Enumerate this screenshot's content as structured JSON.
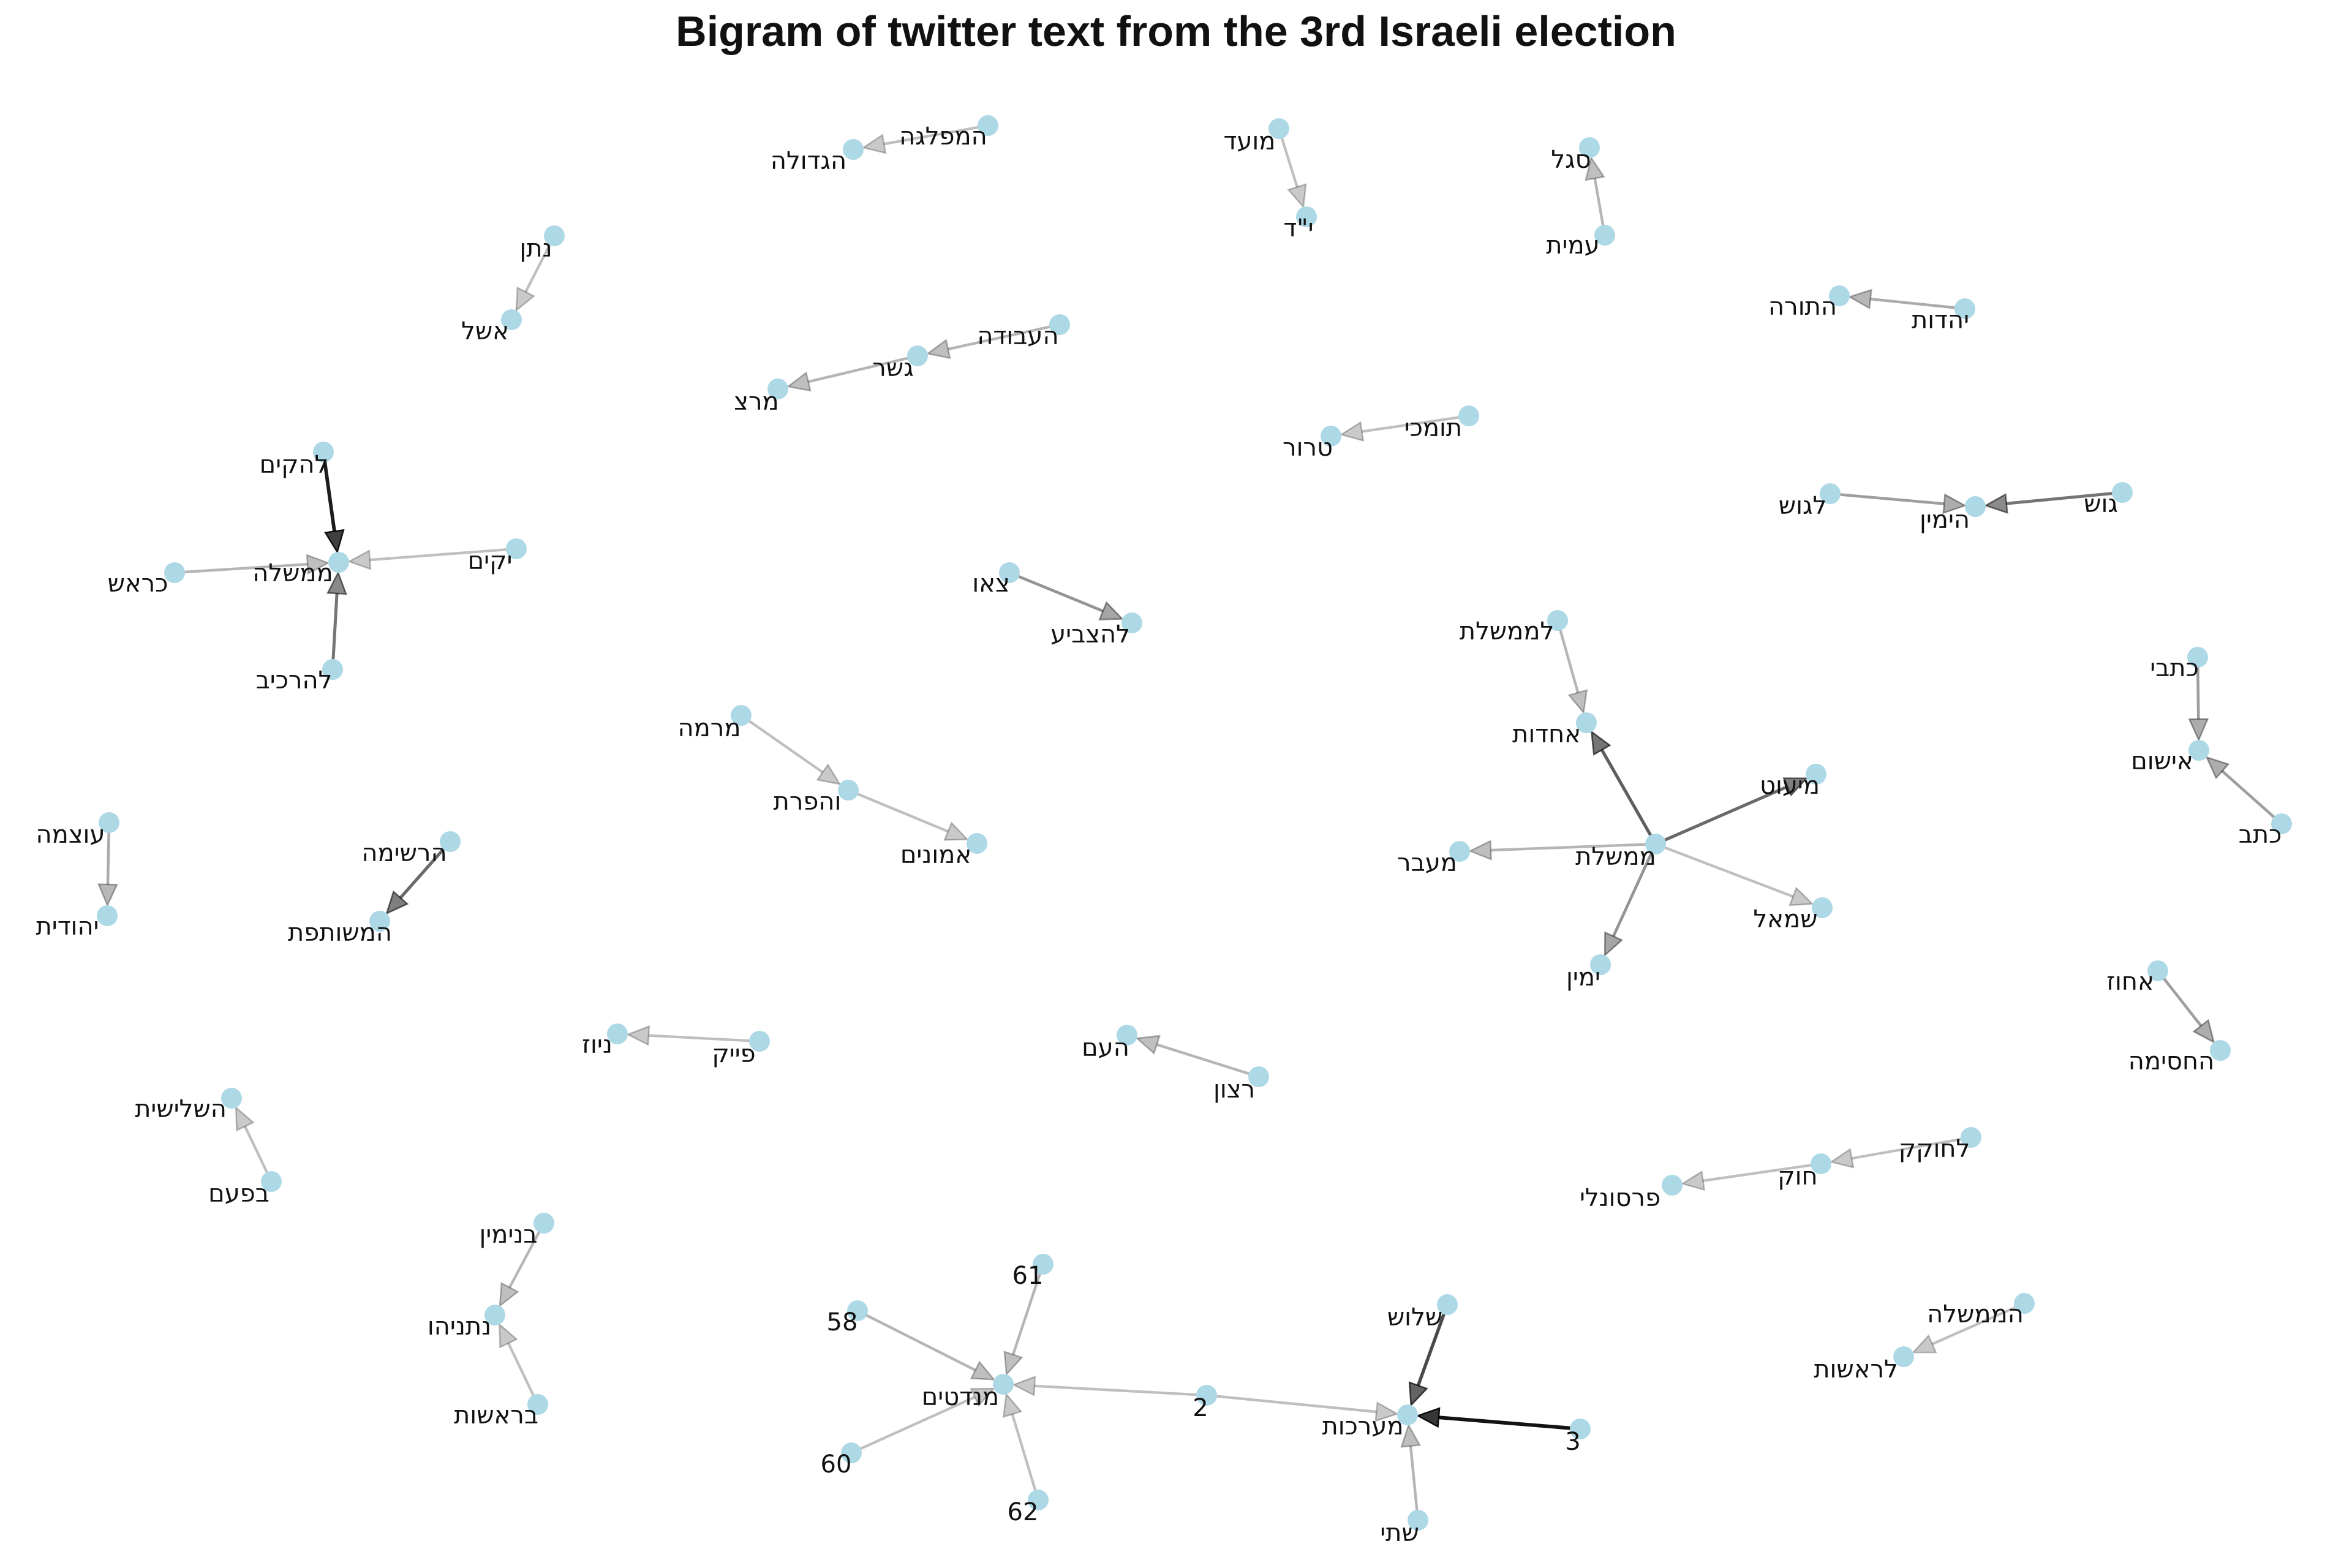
{
  "title": "Bigram of twitter text from the 3rd Israeli election",
  "colors": {
    "node": "#ADD8E6",
    "edge": "#000000",
    "text": "#111111"
  },
  "nodes": [
    {
      "id": "mifleget",
      "label": "המפלגה"
    },
    {
      "id": "gdola",
      "label": "הגדולה"
    },
    {
      "id": "moed",
      "label": "מועד"
    },
    {
      "id": "yud",
      "label": "י\"ד"
    },
    {
      "id": "segal",
      "label": "סגל"
    },
    {
      "id": "amit",
      "label": "עמית"
    },
    {
      "id": "natan",
      "label": "נתן"
    },
    {
      "id": "eshel",
      "label": "אשל"
    },
    {
      "id": "yahadut",
      "label": "יהדות"
    },
    {
      "id": "torah",
      "label": "התורה"
    },
    {
      "id": "avoda",
      "label": "העבודה"
    },
    {
      "id": "gesher",
      "label": "גשר"
    },
    {
      "id": "meretz",
      "label": "מרצ"
    },
    {
      "id": "tomchei",
      "label": "תומכי"
    },
    {
      "id": "teror",
      "label": "טרור"
    },
    {
      "id": "lagush",
      "label": "לגוש"
    },
    {
      "id": "gush",
      "label": "גוש"
    },
    {
      "id": "yamin_h",
      "label": "הימין"
    },
    {
      "id": "lehakim",
      "label": "להקים"
    },
    {
      "id": "yakim",
      "label": "יקים"
    },
    {
      "id": "memshala",
      "label": "ממשלה"
    },
    {
      "id": "kerosh",
      "label": "כראש"
    },
    {
      "id": "leharkiv",
      "label": "להרכיב"
    },
    {
      "id": "tzeu",
      "label": "צאו"
    },
    {
      "id": "lehatzbia",
      "label": "להצביע"
    },
    {
      "id": "lememshelet",
      "label": "לממשלת"
    },
    {
      "id": "achdut",
      "label": "אחדות"
    },
    {
      "id": "miut",
      "label": "מיעוט"
    },
    {
      "id": "maavar",
      "label": "מעבר"
    },
    {
      "id": "memshelet",
      "label": "ממשלת"
    },
    {
      "id": "smol",
      "label": "שמאל"
    },
    {
      "id": "yamin",
      "label": "ימין"
    },
    {
      "id": "ktavi",
      "label": "כתבי"
    },
    {
      "id": "ishum",
      "label": "אישום"
    },
    {
      "id": "ktav",
      "label": "כתב"
    },
    {
      "id": "mirma",
      "label": "מרמה"
    },
    {
      "id": "vehafarat",
      "label": "והפרת"
    },
    {
      "id": "emunim",
      "label": "אמונים"
    },
    {
      "id": "otzma",
      "label": "עוצמה"
    },
    {
      "id": "yehudit",
      "label": "יהודית"
    },
    {
      "id": "reshima",
      "label": "הרשימה"
    },
    {
      "id": "meshutefet",
      "label": "המשותפת"
    },
    {
      "id": "fake",
      "label": "פייק"
    },
    {
      "id": "news",
      "label": "ניוז"
    },
    {
      "id": "ratzon",
      "label": "רצון"
    },
    {
      "id": "haam",
      "label": "העם"
    },
    {
      "id": "achuz",
      "label": "אחוז"
    },
    {
      "id": "hachsima",
      "label": "החסימה"
    },
    {
      "id": "shlishit",
      "label": "השלישית"
    },
    {
      "id": "bapaam",
      "label": "בפעם"
    },
    {
      "id": "lachokek",
      "label": "לחוקק"
    },
    {
      "id": "chok",
      "label": "חוק"
    },
    {
      "id": "personali",
      "label": "פרסונלי"
    },
    {
      "id": "binyamin",
      "label": "בנימין"
    },
    {
      "id": "netanyahu",
      "label": "נתניהו"
    },
    {
      "id": "berashut",
      "label": "בראשות"
    },
    {
      "id": "n61",
      "label": "61"
    },
    {
      "id": "n58",
      "label": "58"
    },
    {
      "id": "mandatim",
      "label": "מנדטים"
    },
    {
      "id": "n60",
      "label": "60"
    },
    {
      "id": "n62",
      "label": "62"
    },
    {
      "id": "n2",
      "label": "2"
    },
    {
      "id": "shalosh",
      "label": "שלוש"
    },
    {
      "id": "maarachot",
      "label": "מערכות"
    },
    {
      "id": "n3",
      "label": "3"
    },
    {
      "id": "shtei",
      "label": "שתי"
    },
    {
      "id": "hamemshala",
      "label": "הממשלה"
    },
    {
      "id": "lerashut",
      "label": "לראשות"
    }
  ],
  "edges": [
    {
      "from": "mifleget",
      "to": "gdola",
      "weight": 0.15
    },
    {
      "from": "moed",
      "to": "yud",
      "weight": 0.15
    },
    {
      "from": "amit",
      "to": "segal",
      "weight": 0.2
    },
    {
      "from": "natan",
      "to": "eshel",
      "weight": 0.15
    },
    {
      "from": "yahadut",
      "to": "torah",
      "weight": 0.25
    },
    {
      "from": "avoda",
      "to": "gesher",
      "weight": 0.2
    },
    {
      "from": "gesher",
      "to": "meretz",
      "weight": 0.2
    },
    {
      "from": "tomchei",
      "to": "teror",
      "weight": 0.15
    },
    {
      "from": "lagush",
      "to": "yamin_h",
      "weight": 0.3
    },
    {
      "from": "gush",
      "to": "yamin_h",
      "weight": 0.5
    },
    {
      "from": "lehakim",
      "to": "memshala",
      "weight": 0.9
    },
    {
      "from": "yakim",
      "to": "memshala",
      "weight": 0.15
    },
    {
      "from": "kerosh",
      "to": "memshala",
      "weight": 0.2
    },
    {
      "from": "leharkiv",
      "to": "memshala",
      "weight": 0.5
    },
    {
      "from": "tzeu",
      "to": "lehatzbia",
      "weight": 0.35
    },
    {
      "from": "lememshelet",
      "to": "achdut",
      "weight": 0.2
    },
    {
      "from": "memshelet",
      "to": "achdut",
      "weight": 0.6
    },
    {
      "from": "memshelet",
      "to": "miut",
      "weight": 0.55
    },
    {
      "from": "memshelet",
      "to": "maavar",
      "weight": 0.2
    },
    {
      "from": "memshelet",
      "to": "smol",
      "weight": 0.15
    },
    {
      "from": "memshelet",
      "to": "yamin",
      "weight": 0.35
    },
    {
      "from": "ktavi",
      "to": "ishum",
      "weight": 0.3
    },
    {
      "from": "ktav",
      "to": "ishum",
      "weight": 0.3
    },
    {
      "from": "mirma",
      "to": "vehafarat",
      "weight": 0.15
    },
    {
      "from": "vehafarat",
      "to": "emunim",
      "weight": 0.15
    },
    {
      "from": "otzma",
      "to": "yehudit",
      "weight": 0.25
    },
    {
      "from": "reshima",
      "to": "meshutefet",
      "weight": 0.55
    },
    {
      "from": "fake",
      "to": "news",
      "weight": 0.15
    },
    {
      "from": "ratzon",
      "to": "haam",
      "weight": 0.2
    },
    {
      "from": "achuz",
      "to": "hachsima",
      "weight": 0.3
    },
    {
      "from": "bapaam",
      "to": "shlishit",
      "weight": 0.15
    },
    {
      "from": "lachokek",
      "to": "chok",
      "weight": 0.15
    },
    {
      "from": "chok",
      "to": "personali",
      "weight": 0.15
    },
    {
      "from": "binyamin",
      "to": "netanyahu",
      "weight": 0.2
    },
    {
      "from": "berashut",
      "to": "netanyahu",
      "weight": 0.15
    },
    {
      "from": "n61",
      "to": "mandatim",
      "weight": 0.2
    },
    {
      "from": "n58",
      "to": "mandatim",
      "weight": 0.2
    },
    {
      "from": "n60",
      "to": "mandatim",
      "weight": 0.15
    },
    {
      "from": "n62",
      "to": "mandatim",
      "weight": 0.15
    },
    {
      "from": "n2",
      "to": "mandatim",
      "weight": 0.15
    },
    {
      "from": "n2",
      "to": "maarachot",
      "weight": 0.15
    },
    {
      "from": "shalosh",
      "to": "maarachot",
      "weight": 0.7
    },
    {
      "from": "n3",
      "to": "maarachot",
      "weight": 0.95
    },
    {
      "from": "shtei",
      "to": "maarachot",
      "weight": 0.2
    },
    {
      "from": "hamemshala",
      "to": "lerashut",
      "weight": 0.15
    }
  ]
}
